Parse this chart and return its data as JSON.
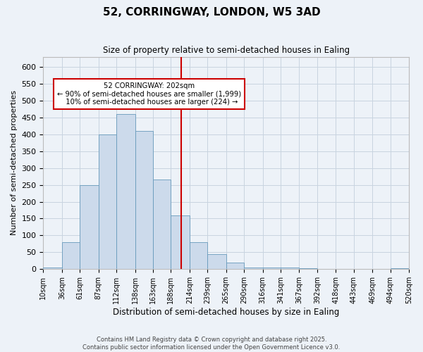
{
  "title_line1": "52, CORRINGWAY, LONDON, W5 3AD",
  "title_line2": "Size of property relative to semi-detached houses in Ealing",
  "xlabel": "Distribution of semi-detached houses by size in Ealing",
  "ylabel": "Number of semi-detached properties",
  "property_size": 202,
  "property_label": "52 CORRINGWAY: 202sqm",
  "smaller_pct": 90,
  "smaller_count": 1999,
  "larger_pct": 10,
  "larger_count": 224,
  "annotation_type": "semi-detached houses",
  "bar_color": "#ccdaeb",
  "bar_edge_color": "#6699bb",
  "vline_color": "#cc0000",
  "annotation_box_color": "#cc0000",
  "grid_color": "#c8d4e0",
  "background_color": "#edf2f8",
  "bin_edges": [
    10,
    36,
    61,
    87,
    112,
    138,
    163,
    188,
    214,
    239,
    265,
    290,
    316,
    341,
    367,
    392,
    418,
    443,
    469,
    494,
    520
  ],
  "bar_heights": [
    5,
    80,
    250,
    400,
    460,
    410,
    265,
    160,
    80,
    45,
    20,
    5,
    5,
    5,
    2,
    0,
    0,
    0,
    0,
    2
  ],
  "ylim": [
    0,
    630
  ],
  "yticks": [
    0,
    50,
    100,
    150,
    200,
    250,
    300,
    350,
    400,
    450,
    500,
    550,
    600
  ],
  "footer_line1": "Contains HM Land Registry data © Crown copyright and database right 2025.",
  "footer_line2": "Contains public sector information licensed under the Open Government Licence v3.0."
}
